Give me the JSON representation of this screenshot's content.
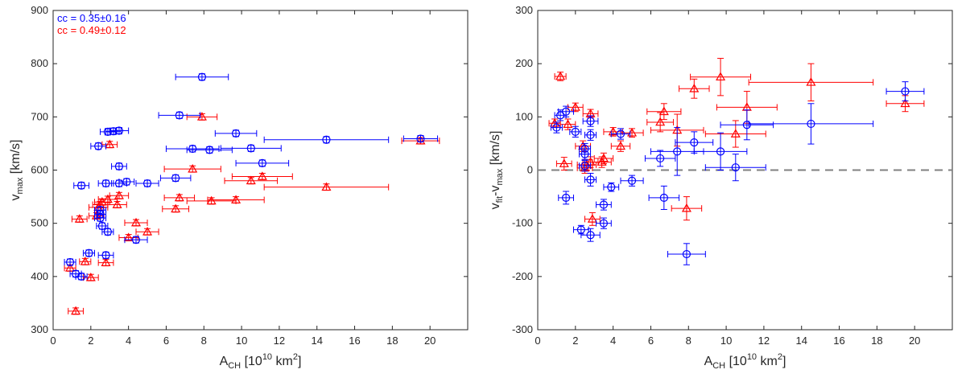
{
  "colors": {
    "blue": "#0000ff",
    "red": "#ff0000",
    "axis": "#262626",
    "zero_line": "#808080"
  },
  "chart_data": [
    {
      "type": "scatter",
      "xlabel": {
        "main": "A",
        "sub": "CH",
        "rest": " [10",
        "sup": "10",
        "tail": " km",
        "sup2": "2",
        "end": "]"
      },
      "ylabel": {
        "main": "v",
        "sub": "max",
        "rest": " [km/s]"
      },
      "xlim": [
        0,
        22
      ],
      "ylim": [
        300,
        900
      ],
      "xticks": [
        "0",
        "2",
        "4",
        "6",
        "8",
        "10",
        "12",
        "14",
        "16",
        "18",
        "20"
      ],
      "yticks": [
        "300",
        "400",
        "500",
        "600",
        "700",
        "800",
        "900"
      ],
      "legend": [
        "cc = 0.35±0.16",
        "cc = 0.49±0.12"
      ],
      "series": [
        {
          "name": "blue",
          "marker": "circle",
          "color": "blue",
          "points": [
            [
              0.9,
              427,
              0.3
            ],
            [
              1.2,
              405,
              0.3
            ],
            [
              1.5,
              400,
              0.3
            ],
            [
              1.9,
              444,
              0.3
            ],
            [
              1.5,
              571,
              0.4
            ],
            [
              2.4,
              645,
              0.4
            ],
            [
              2.5,
              525,
              0.3
            ],
            [
              2.5,
              517,
              0.3
            ],
            [
              2.5,
              510,
              0.3
            ],
            [
              2.6,
              495,
              0.3
            ],
            [
              2.8,
              440,
              0.4
            ],
            [
              2.8,
              575,
              0.4
            ],
            [
              2.9,
              484,
              0.3
            ],
            [
              2.9,
              672,
              0.4
            ],
            [
              3.2,
              673,
              0.4
            ],
            [
              3.5,
              674,
              0.5
            ],
            [
              3.5,
              607,
              0.4
            ],
            [
              3.5,
              575,
              0.4
            ],
            [
              3.9,
              578,
              0.4
            ],
            [
              4.4,
              469,
              0.6
            ],
            [
              5.0,
              575,
              0.6
            ],
            [
              6.5,
              585,
              0.8
            ],
            [
              6.7,
              703,
              1.1
            ],
            [
              7.4,
              640,
              1.4
            ],
            [
              7.9,
              775,
              1.4
            ],
            [
              8.3,
              638,
              1.2
            ],
            [
              9.7,
              669,
              1.1
            ],
            [
              10.5,
              641,
              1.6
            ],
            [
              11.1,
              613,
              1.4
            ],
            [
              14.5,
              657,
              3.3
            ],
            [
              19.5,
              659,
              0.9
            ]
          ]
        },
        {
          "name": "red",
          "marker": "triangle",
          "color": "red",
          "points": [
            [
              0.9,
              416,
              0.3
            ],
            [
              1.2,
              335,
              0.4
            ],
            [
              1.4,
              508,
              0.4
            ],
            [
              1.7,
              428,
              0.3
            ],
            [
              2.0,
              398,
              0.4
            ],
            [
              2.3,
              514,
              0.4
            ],
            [
              2.4,
              530,
              0.5
            ],
            [
              2.5,
              535,
              0.4
            ],
            [
              2.6,
              540,
              0.4
            ],
            [
              2.8,
              426,
              0.4
            ],
            [
              2.9,
              545,
              0.5
            ],
            [
              3.0,
              648,
              0.4
            ],
            [
              3.4,
              535,
              0.5
            ],
            [
              3.5,
              552,
              0.5
            ],
            [
              4.0,
              473,
              0.5
            ],
            [
              4.4,
              501,
              0.6
            ],
            [
              5.0,
              484,
              0.6
            ],
            [
              6.5,
              527,
              0.7
            ],
            [
              6.7,
              548,
              0.8
            ],
            [
              7.4,
              602,
              1.5
            ],
            [
              7.9,
              700,
              0.8
            ],
            [
              8.4,
              542,
              1.3
            ],
            [
              9.7,
              544,
              1.5
            ],
            [
              10.5,
              580,
              1.4
            ],
            [
              11.1,
              588,
              1.6
            ],
            [
              14.5,
              568,
              3.3
            ],
            [
              19.5,
              655,
              1.0
            ]
          ]
        }
      ]
    },
    {
      "type": "scatter",
      "xlabel": {
        "main": "A",
        "sub": "CH",
        "rest": " [10",
        "sup": "10",
        "tail": " km",
        "sup2": "2",
        "end": "]"
      },
      "ylabel": {
        "main": "v",
        "sub": "fit",
        "rest": "-v",
        "sub2": "max",
        "end": " [km/s]"
      },
      "xlim": [
        0,
        22
      ],
      "ylim": [
        -300,
        300
      ],
      "xticks": [
        "0",
        "2",
        "4",
        "6",
        "8",
        "10",
        "12",
        "14",
        "16",
        "18",
        "20"
      ],
      "yticks": [
        "-300",
        "-200",
        "-100",
        "0",
        "100",
        "200",
        "300"
      ],
      "zero_line": 0,
      "series": [
        {
          "name": "blue",
          "marker": "circle",
          "color": "blue",
          "points": [
            [
              1.0,
              80,
              0.3,
              10
            ],
            [
              1.2,
              103,
              0.3,
              10
            ],
            [
              1.5,
              110,
              0.4,
              10
            ],
            [
              1.5,
              -52,
              0.4,
              12
            ],
            [
              2.0,
              72,
              0.3,
              10
            ],
            [
              2.3,
              -112,
              0.4,
              8
            ],
            [
              2.5,
              40,
              0.3,
              10
            ],
            [
              2.5,
              30,
              0.3,
              10
            ],
            [
              2.5,
              8,
              0.3,
              10
            ],
            [
              2.8,
              92,
              0.4,
              10
            ],
            [
              2.8,
              66,
              0.3,
              10
            ],
            [
              2.8,
              -18,
              0.3,
              12
            ],
            [
              2.8,
              -122,
              0.5,
              12
            ],
            [
              3.5,
              -65,
              0.4,
              10
            ],
            [
              3.5,
              -100,
              0.4,
              10
            ],
            [
              3.9,
              -32,
              0.4,
              8
            ],
            [
              4.4,
              68,
              0.5,
              10
            ],
            [
              5.0,
              -20,
              0.6,
              10
            ],
            [
              6.5,
              22,
              0.8,
              15
            ],
            [
              6.7,
              -52,
              0.8,
              22
            ],
            [
              7.4,
              35,
              1.4,
              45
            ],
            [
              7.9,
              -158,
              1.0,
              20
            ],
            [
              8.3,
              52,
              1.0,
              20
            ],
            [
              9.7,
              35,
              1.4,
              35
            ],
            [
              10.5,
              5,
              1.6,
              25
            ],
            [
              11.1,
              85,
              1.4,
              28
            ],
            [
              14.5,
              87,
              3.3,
              38
            ],
            [
              19.5,
              148,
              1.0,
              18
            ]
          ]
        },
        {
          "name": "red",
          "marker": "triangle",
          "color": "red",
          "points": [
            [
              0.9,
              88,
              0.3,
              8
            ],
            [
              1.2,
              176,
              0.3,
              8
            ],
            [
              1.4,
              12,
              0.4,
              12
            ],
            [
              1.6,
              86,
              0.4,
              10
            ],
            [
              2.0,
              118,
              0.4,
              8
            ],
            [
              2.4,
              45,
              0.4,
              10
            ],
            [
              2.5,
              4,
              0.4,
              10
            ],
            [
              2.6,
              10,
              0.5,
              10
            ],
            [
              2.8,
              15,
              0.4,
              10
            ],
            [
              2.8,
              106,
              0.4,
              8
            ],
            [
              2.9,
              -92,
              0.4,
              12
            ],
            [
              3.4,
              15,
              0.5,
              10
            ],
            [
              3.5,
              22,
              0.5,
              10
            ],
            [
              4.0,
              72,
              0.5,
              8
            ],
            [
              4.4,
              45,
              0.5,
              10
            ],
            [
              5.0,
              70,
              0.6,
              8
            ],
            [
              6.5,
              90,
              0.7,
              18
            ],
            [
              6.7,
              110,
              0.9,
              15
            ],
            [
              7.4,
              75,
              1.4,
              30
            ],
            [
              7.9,
              -72,
              0.8,
              22
            ],
            [
              8.3,
              153,
              0.8,
              18
            ],
            [
              9.7,
              175,
              1.6,
              35
            ],
            [
              10.5,
              68,
              1.6,
              25
            ],
            [
              11.1,
              118,
              1.6,
              30
            ],
            [
              14.5,
              165,
              3.3,
              35
            ],
            [
              19.5,
              125,
              1.0,
              15
            ]
          ]
        }
      ]
    }
  ]
}
